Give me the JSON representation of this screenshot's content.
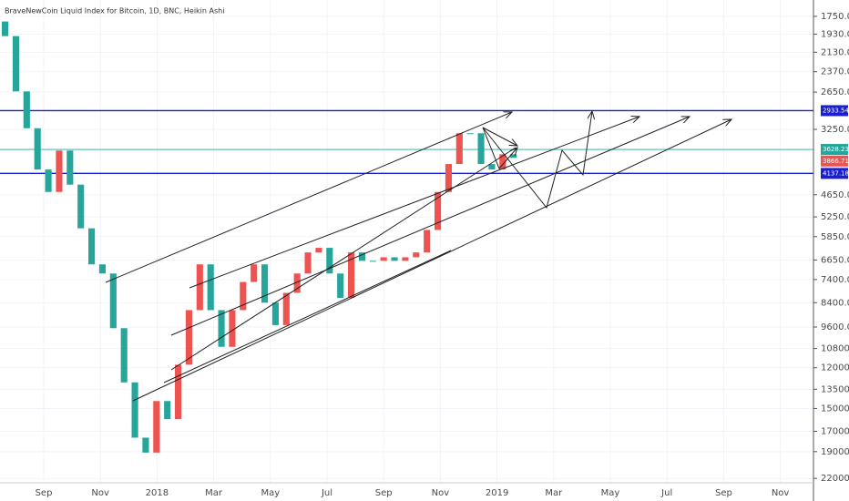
{
  "chart_data": {
    "type": "candlestick",
    "title": "BraveNewCoin Liquid Index for Bitcoin, 1D, BNC, Heikin Ashi",
    "log_scale": true,
    "ylim": [
      24900,
      1600
    ],
    "yticks": [
      {
        "value": 1750,
        "label": "1750.0"
      },
      {
        "value": 1930,
        "label": "1930.0"
      },
      {
        "value": 2130,
        "label": "2130.0"
      },
      {
        "value": 2370,
        "label": "2370.0"
      },
      {
        "value": 2650,
        "label": "2650.0"
      },
      {
        "value": 3250,
        "label": "3250.0"
      },
      {
        "value": 4650,
        "label": "4650.0"
      },
      {
        "value": 5250,
        "label": "5250.0"
      },
      {
        "value": 5850,
        "label": "5850.0"
      },
      {
        "value": 6650,
        "label": "6650.0"
      },
      {
        "value": 7400,
        "label": "7400.0"
      },
      {
        "value": 8400,
        "label": "8400.0"
      },
      {
        "value": 9600,
        "label": "9600.0"
      },
      {
        "value": 10800,
        "label": "10800.0"
      },
      {
        "value": 12000,
        "label": "12000.0"
      },
      {
        "value": 13500,
        "label": "13500.0"
      },
      {
        "value": 15000,
        "label": "15000.0"
      },
      {
        "value": 17000,
        "label": "17000.0"
      },
      {
        "value": 19000,
        "label": "19000.0"
      },
      {
        "value": 22000,
        "label": "22000.0"
      }
    ],
    "categories": [
      "Sep",
      "Nov",
      "2018",
      "Mar",
      "May",
      "Jul",
      "Sep",
      "Nov",
      "2019",
      "Mar",
      "May",
      "Jul",
      "Sep",
      "Nov"
    ],
    "grid": true,
    "up_color": "#26a69a",
    "down_color": "#ef5350",
    "open": [
      1800,
      1950,
      2640,
      3230,
      4050,
      4580,
      3650,
      4400,
      5590,
      6810,
      7160,
      9660,
      13000,
      17600,
      19100,
      14400,
      15900,
      11800,
      8750,
      6810,
      8750,
      10700,
      8750,
      7500,
      6810,
      8400,
      9500,
      7960,
      7160,
      6380,
      6220,
      7160,
      8180,
      6380,
      6680,
      6680,
      6550,
      6680,
      6550,
      6380,
      5640,
      4580,
      3930,
      3320,
      3320,
      3930,
      4050,
      3725
    ],
    "close": [
      1950,
      2640,
      3230,
      4050,
      4580,
      3650,
      4400,
      5590,
      6810,
      7160,
      9660,
      13000,
      17600,
      19100,
      14400,
      15900,
      11800,
      8750,
      6810,
      8750,
      10700,
      8750,
      7500,
      6810,
      8400,
      9500,
      7960,
      7160,
      6380,
      6220,
      7160,
      8180,
      6380,
      6680,
      6680,
      6550,
      6680,
      6550,
      6380,
      5640,
      4580,
      3930,
      3320,
      3320,
      3930,
      4050,
      3725,
      3800
    ],
    "levels": [
      {
        "value": 2933.54,
        "color": "#1a1fd1"
      },
      {
        "value": 3628.23,
        "color": "#26a69a"
      },
      {
        "value": 3866.71,
        "color": "#ef5350"
      },
      {
        "value": 4137.18,
        "color": "#1a1fd1"
      }
    ]
  }
}
